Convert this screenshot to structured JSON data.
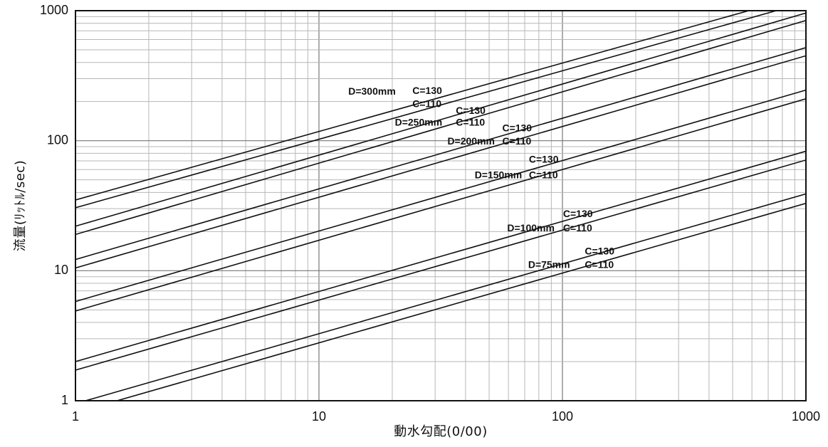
{
  "chart_data": {
    "type": "line",
    "title": "",
    "xlabel": "動水勾配(0/00)",
    "ylabel": "流量(ﾘｯﾄﾙ/sec)",
    "x_scale": "log",
    "y_scale": "log",
    "xlim": [
      1,
      1000
    ],
    "ylim": [
      1,
      1000
    ],
    "grid": true,
    "x_ticks": [
      "1",
      "10",
      "100",
      "1000"
    ],
    "y_ticks": [
      "1",
      "10",
      "100",
      "1000"
    ],
    "series": [
      {
        "diameter": "D=300mm",
        "coefficient": "C=130",
        "points": [
          [
            1,
            35
          ],
          [
            1000,
            1330
          ]
        ]
      },
      {
        "diameter": "D=300mm",
        "coefficient": "C=110",
        "points": [
          [
            1,
            30.5
          ],
          [
            1000,
            1160
          ]
        ]
      },
      {
        "diameter": "D=250mm",
        "coefficient": "C=130",
        "points": [
          [
            1,
            22
          ],
          [
            1000,
            960
          ]
        ]
      },
      {
        "diameter": "D=250mm",
        "coefficient": "C=110",
        "points": [
          [
            1,
            19
          ],
          [
            1000,
            840
          ]
        ]
      },
      {
        "diameter": "D=200mm",
        "coefficient": "C=130",
        "points": [
          [
            1,
            12.2
          ],
          [
            1000,
            520
          ]
        ]
      },
      {
        "diameter": "D=200mm",
        "coefficient": "C=110",
        "points": [
          [
            1,
            10.5
          ],
          [
            1000,
            450
          ]
        ]
      },
      {
        "diameter": "D=150mm",
        "coefficient": "C=130",
        "points": [
          [
            1,
            5.8
          ],
          [
            1000,
            245
          ]
        ]
      },
      {
        "diameter": "D=150mm",
        "coefficient": "C=110",
        "points": [
          [
            1,
            4.9
          ],
          [
            1000,
            210
          ]
        ]
      },
      {
        "diameter": "D=100mm",
        "coefficient": "C=130",
        "points": [
          [
            1,
            2.0
          ],
          [
            1000,
            83
          ]
        ]
      },
      {
        "diameter": "D=100mm",
        "coefficient": "C=110",
        "points": [
          [
            1,
            1.72
          ],
          [
            1000,
            71
          ]
        ]
      },
      {
        "diameter": "D=75mm",
        "coefficient": "C=130",
        "points": [
          [
            1,
            0.95
          ],
          [
            1000,
            39
          ]
        ]
      },
      {
        "diameter": "D=75mm",
        "coefficient": "C=110",
        "points": [
          [
            1,
            0.81
          ],
          [
            1000,
            33
          ]
        ]
      }
    ],
    "annotations": [
      {
        "text": "D=300mm",
        "x": 13.2,
        "y": 237
      },
      {
        "text": "C=130",
        "x": 24.2,
        "y": 240
      },
      {
        "text": "C=110",
        "x": 24.2,
        "y": 190
      },
      {
        "text": "C=130",
        "x": 36.5,
        "y": 168
      },
      {
        "text": "D=250mm",
        "x": 20.5,
        "y": 137
      },
      {
        "text": "C=110",
        "x": 36.5,
        "y": 137
      },
      {
        "text": "C=130",
        "x": 56.6,
        "y": 124
      },
      {
        "text": "D=200mm",
        "x": 33.7,
        "y": 98
      },
      {
        "text": "C=110",
        "x": 56.6,
        "y": 98
      },
      {
        "text": "C=130",
        "x": 72.8,
        "y": 71
      },
      {
        "text": "D=150mm",
        "x": 43.6,
        "y": 54
      },
      {
        "text": "C=110",
        "x": 72.8,
        "y": 54
      },
      {
        "text": "C=130",
        "x": 100.6,
        "y": 27
      },
      {
        "text": "D=100mm",
        "x": 59.3,
        "y": 21
      },
      {
        "text": "C=110",
        "x": 100.6,
        "y": 21
      },
      {
        "text": "C=130",
        "x": 123.5,
        "y": 14
      },
      {
        "text": "D=75mm",
        "x": 72.3,
        "y": 11
      },
      {
        "text": "C=110",
        "x": 123.5,
        "y": 11
      }
    ]
  }
}
